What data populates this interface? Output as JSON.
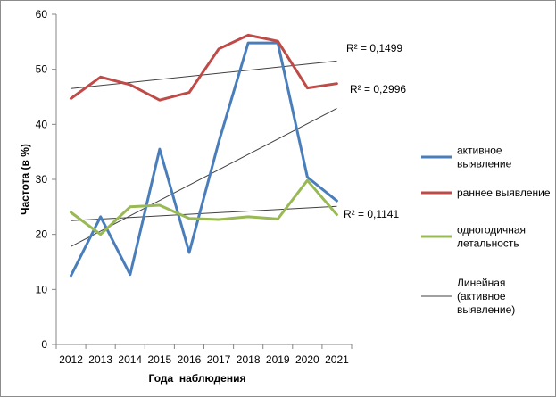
{
  "chart_data": {
    "type": "line",
    "xlabel": "Года  наблюдения",
    "ylabel": "Частота (в %)",
    "x": [
      "2012",
      "2013",
      "2014",
      "2015",
      "2016",
      "2017",
      "2018",
      "2019",
      "2020",
      "2021"
    ],
    "ylim": [
      0,
      60
    ],
    "yticks": [
      "0",
      "10",
      "20",
      "30",
      "40",
      "50",
      "60"
    ],
    "grid": false,
    "legend_position": "right",
    "series": [
      {
        "name": "активное выявление",
        "color": "#4a7ebb",
        "values": [
          12.5,
          23.2,
          12.7,
          35.5,
          16.7,
          36.8,
          54.8,
          54.8,
          30.4,
          26.1
        ]
      },
      {
        "name": "раннее выявление",
        "color": "#be4b48",
        "values": [
          44.7,
          48.6,
          47.2,
          44.4,
          45.8,
          53.7,
          56.2,
          55.1,
          46.6,
          47.4
        ]
      },
      {
        "name": "одногодичная летальность",
        "color": "#98b954",
        "values": [
          24.0,
          20.0,
          25.0,
          25.3,
          22.9,
          22.7,
          23.2,
          22.8,
          29.8,
          23.6
        ]
      }
    ],
    "trendlines": [
      {
        "name": "Линейная (активное выявление)",
        "color": "#404040",
        "start": 17.8,
        "end": 42.9,
        "r2": "R² = 0,2996"
      },
      {
        "name": "",
        "color": "#404040",
        "start": 46.5,
        "end": 51.5,
        "r2": "R² = 0,1499"
      },
      {
        "name": "",
        "color": "#404040",
        "start": 22.5,
        "end": 25.1,
        "r2": "R² = 0,1141"
      }
    ],
    "legend": [
      {
        "lines": [
          "активное",
          "выявление"
        ],
        "color": "#4a7ebb"
      },
      {
        "lines": [
          "раннее выявление"
        ],
        "color": "#be4b48"
      },
      {
        "lines": [
          "одногодичная",
          "летальность"
        ],
        "color": "#98b954"
      },
      {
        "lines": [
          "Линейная",
          "(активное",
          "выявление)"
        ],
        "color": "#404040"
      }
    ]
  }
}
